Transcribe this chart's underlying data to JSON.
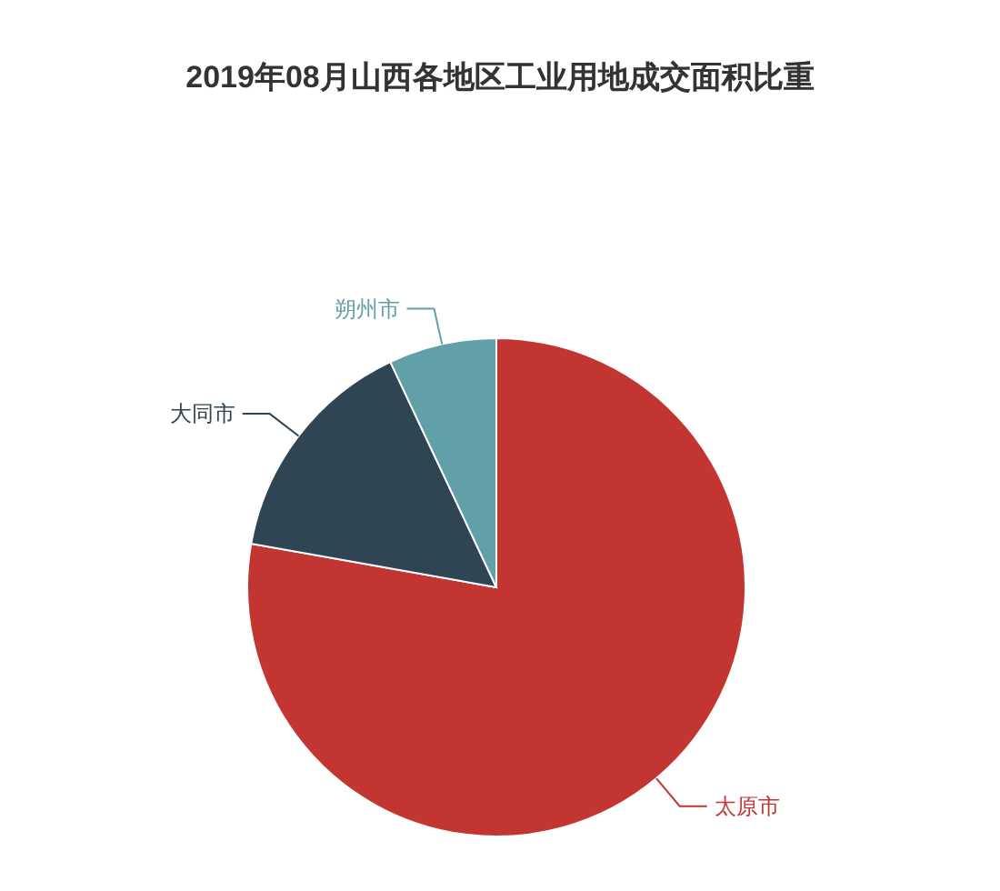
{
  "chart_data": {
    "type": "pie",
    "title": "2019年08月山西各地区工业用地成交面积比重",
    "categories": [
      "太原市",
      "大同市",
      "朔州市"
    ],
    "values": [
      77.8,
      15.2,
      7.0
    ],
    "colors": [
      "#c23531",
      "#2f4554",
      "#61a0a8"
    ]
  }
}
